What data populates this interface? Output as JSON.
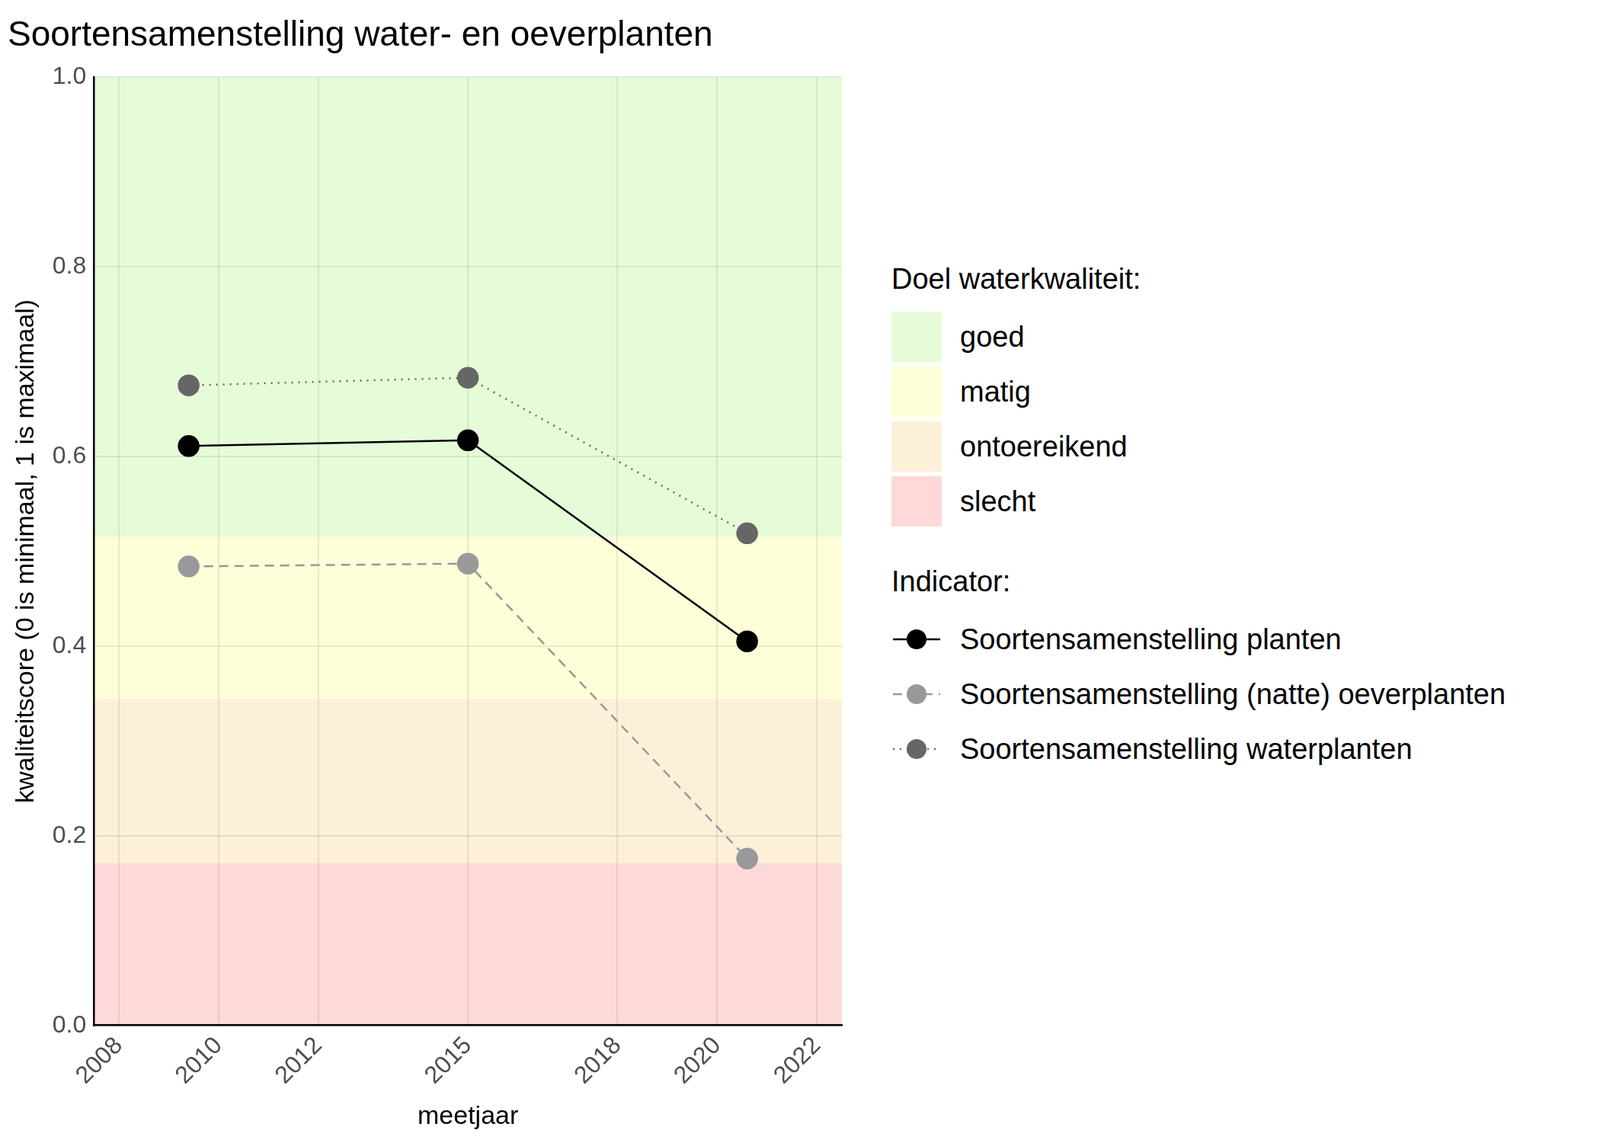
{
  "chart_data": {
    "type": "line",
    "title": "Soortensamenstelling water- en oeverplanten",
    "x_label": "meetjaar",
    "y_label": "kwaliteitscore (0 is minimaal, 1 is maximaal)",
    "x": [
      2009.4,
      2015.0,
      2020.6
    ],
    "series": [
      {
        "name": "Soortensamenstelling planten",
        "color": "#000000",
        "line_style": "solid",
        "marker": "circle",
        "values": [
          0.611,
          0.617,
          0.405
        ]
      },
      {
        "name": "Soortensamenstelling (natte) oeverplanten",
        "color": "#999999",
        "line_style": "dashed",
        "marker": "circle",
        "values": [
          0.484,
          0.487,
          0.176
        ]
      },
      {
        "name": "Soortensamenstelling waterplanten",
        "color": "#666666",
        "line_style": "dotted",
        "marker": "circle",
        "values": [
          0.675,
          0.683,
          0.519
        ]
      }
    ],
    "xlim": [
      2007.5,
      2022.5
    ],
    "xticks": [
      2008,
      2010,
      2012,
      2015,
      2018,
      2020,
      2022
    ],
    "ylim": [
      0,
      1
    ],
    "yticks": [
      {
        "value": 0,
        "label": "0.0"
      },
      0.2,
      0.4,
      0.6,
      0.8,
      {
        "value": 1,
        "label": "1.0"
      }
    ],
    "grid": true,
    "legend": "right",
    "legend_title": "Indicator:",
    "bands": {
      "title": "Doel waterkwaliteit:",
      "items": [
        {
          "name": "goed",
          "from": 0.515,
          "to": 1,
          "color": "#e6fcd8"
        },
        {
          "name": "matig",
          "from": 0.344,
          "to": 0.515,
          "color": "#fefed9"
        },
        {
          "name": "ontoereikend",
          "from": 0.171,
          "to": 0.344,
          "color": "#fdf0d9"
        },
        {
          "name": "slecht",
          "from": 0,
          "to": 0.171,
          "color": "#fdd9d9"
        }
      ]
    }
  }
}
